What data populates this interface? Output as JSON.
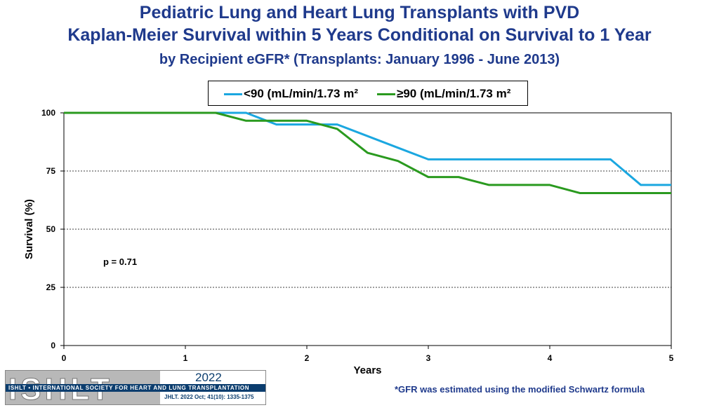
{
  "colors": {
    "title": "#1f3a8c",
    "series_lt90": "#1ba7e0",
    "series_ge90": "#2a9a1f",
    "grid": "#000000"
  },
  "chart_data": {
    "type": "line",
    "title": "Pediatric Lung and Heart Lung Transplants with PVD",
    "subtitle": "Kaplan-Meier Survival within 5 Years Conditional on Survival to 1 Year",
    "subtitle2": "by Recipient eGFR* (Transplants: January 1996 - June 2013)",
    "xlabel": "Years",
    "ylabel": "Survival (%)",
    "xlim": [
      0,
      5
    ],
    "ylim": [
      0,
      100
    ],
    "xticks": [
      "0",
      "1",
      "2",
      "3",
      "4",
      "5"
    ],
    "yticks": [
      "0",
      "25",
      "50",
      "75",
      "100"
    ],
    "grid": "horizontal dashed",
    "legend_position": "top-center",
    "annotation": "p = 0.71",
    "series": [
      {
        "name": "<90 (mL/min/1.73 m²",
        "color": "#1ba7e0",
        "x": [
          0,
          1.25,
          1.5,
          1.75,
          2.25,
          2.75,
          3.0,
          4.5,
          4.75,
          5.0
        ],
        "y": [
          100,
          100,
          100,
          95,
          95,
          85,
          80,
          80,
          69,
          69
        ]
      },
      {
        "name": "≥90 (mL/min/1.73 m²",
        "color": "#2a9a1f",
        "x": [
          0,
          1.25,
          1.5,
          2.0,
          2.25,
          2.5,
          2.75,
          3.0,
          3.25,
          3.5,
          4.0,
          4.25,
          5.0
        ],
        "y": [
          100,
          100,
          96.6,
          96.6,
          93.1,
          82.8,
          79.3,
          72.4,
          72.4,
          69,
          69,
          65.5,
          65.5
        ]
      }
    ]
  },
  "footnote": "*GFR was estimated using the modified Schwartz formula",
  "logo": {
    "text": "ISHLT",
    "org": "ISHLT • INTERNATIONAL SOCIETY FOR HEART AND LUNG TRANSPLANTATION",
    "year": "2022",
    "citation": "JHLT. 2022 Oct; 41(10): 1335-1375"
  }
}
